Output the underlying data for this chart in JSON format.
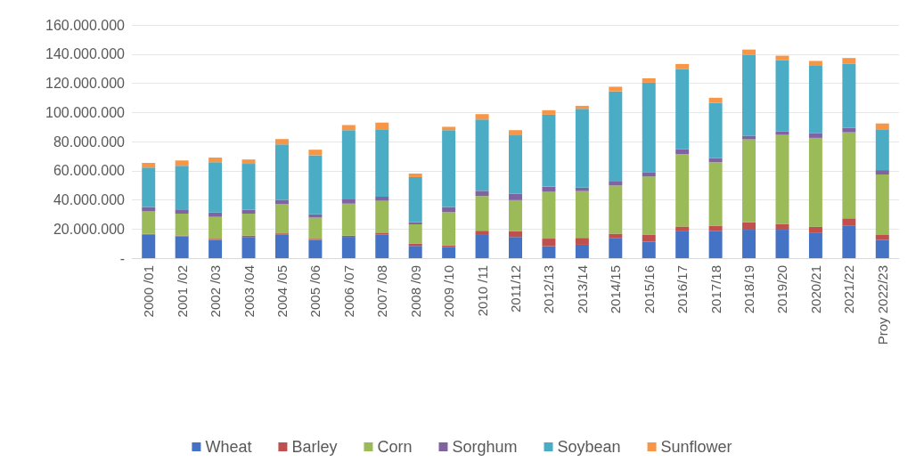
{
  "chart_data": {
    "type": "bar",
    "stacked": true,
    "grid": "y",
    "legend": "bottom",
    "categories": [
      "2000 /01",
      "2001 /02",
      "2002 /03",
      "2003 /04",
      "2004 /05",
      "2005 /06",
      "2006 /07",
      "2007 /08",
      "2008 /09",
      "2009 /10",
      "2010 /11",
      "2011/12",
      "2012/13",
      "2013/14",
      "2014/15",
      "2015/16",
      "2016/17",
      "2017/18",
      "2018/19",
      "2019/20",
      "2020/21",
      "2021/22",
      "Proy 2022/23"
    ],
    "ylim": [
      0,
      160000000
    ],
    "yticks": [
      {
        "value": 0,
        "label": "-"
      },
      {
        "value": 20000000,
        "label": "20.000.000"
      },
      {
        "value": 40000000,
        "label": "40.000.000"
      },
      {
        "value": 60000000,
        "label": "60.000.000"
      },
      {
        "value": 80000000,
        "label": "80.000.000"
      },
      {
        "value": 100000000,
        "label": "100.000.000"
      },
      {
        "value": 120000000,
        "label": "120.000.000"
      },
      {
        "value": 140000000,
        "label": "140.000.000"
      },
      {
        "value": 160000000,
        "label": "160.000.000"
      }
    ],
    "series": [
      {
        "name": "Wheat",
        "color": "#4472c4",
        "values": [
          16000000,
          15000000,
          12500000,
          14500000,
          16000000,
          12500000,
          14600000,
          16300000,
          8400000,
          7500000,
          15900000,
          14500000,
          8200000,
          9200000,
          13900000,
          11300000,
          18400000,
          18500000,
          19500000,
          19500000,
          17600000,
          22100000,
          12600000
        ]
      },
      {
        "name": "Barley",
        "color": "#c0504d",
        "values": [
          700000,
          600000,
          800000,
          1000000,
          1000000,
          800000,
          800000,
          1200000,
          1700000,
          1300000,
          2900000,
          4100000,
          5200000,
          4700000,
          2900000,
          4900000,
          3300000,
          3700000,
          5100000,
          4000000,
          4000000,
          5200000,
          3300000
        ]
      },
      {
        "name": "Corn",
        "color": "#9bbb59",
        "values": [
          15400000,
          15000000,
          15000000,
          15000000,
          20000000,
          14500000,
          22000000,
          21800000,
          13100000,
          22700000,
          23800000,
          21200000,
          32100000,
          32100000,
          33000000,
          39800000,
          49500000,
          43500000,
          56900000,
          61000000,
          60900000,
          59000000,
          41500000
        ]
      },
      {
        "name": "Sorghum",
        "color": "#8064a2",
        "values": [
          3000000,
          2800000,
          3000000,
          2700000,
          3000000,
          2300000,
          2900000,
          2900000,
          1500000,
          3600000,
          3600000,
          4300000,
          3600000,
          2400000,
          3200000,
          3000000,
          3500000,
          3000000,
          2500000,
          2400000,
          3200000,
          3000000,
          3000000
        ]
      },
      {
        "name": "Soybean",
        "color": "#4bacc6",
        "values": [
          27000000,
          30000000,
          34500000,
          31500000,
          38000000,
          40500000,
          47500000,
          46200000,
          30900000,
          52700000,
          48900000,
          40100000,
          49300000,
          54000000,
          61400000,
          61400000,
          55000000,
          37800000,
          55300000,
          48800000,
          46200000,
          43900000,
          28000000
        ]
      },
      {
        "name": "Sunflower",
        "color": "#f79646",
        "values": [
          3200000,
          3600000,
          3200000,
          3000000,
          3700000,
          3800000,
          3500000,
          4600000,
          2400000,
          2300000,
          3700000,
          3600000,
          3100000,
          2100000,
          3200000,
          3000000,
          3500000,
          3500000,
          3800000,
          3200000,
          3400000,
          4100000,
          4000000
        ]
      }
    ]
  }
}
